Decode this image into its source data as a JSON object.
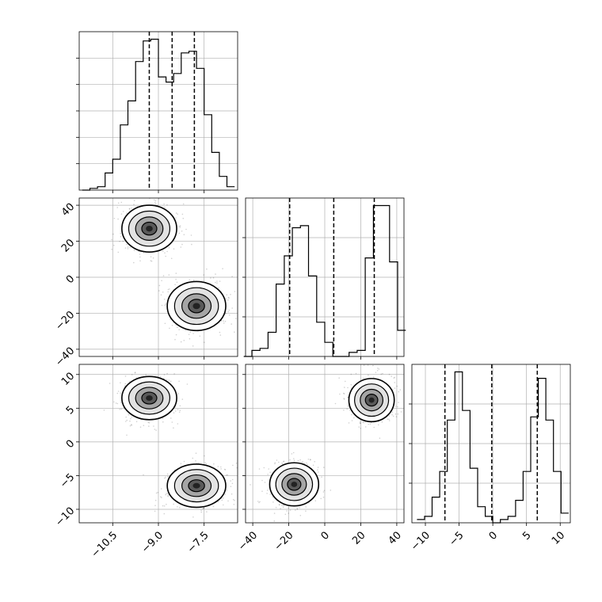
{
  "chart_data": {
    "type": "corner",
    "grid": true,
    "colors": {
      "line": "#000000",
      "grid": "#b0b0b0",
      "points": "#000000"
    },
    "panels": {
      "hist_p0": {
        "type": "histogram",
        "bin_edges": [
          -11.5,
          -11.25,
          -11.0,
          -10.75,
          -10.5,
          -10.25,
          -10.0,
          -9.75,
          -9.5,
          -9.25,
          -9.0,
          -8.75,
          -8.5,
          -8.25,
          -8.0,
          -7.75,
          -7.5,
          -7.25,
          -7.0,
          -6.75,
          -6.5
        ],
        "counts": [
          0,
          1,
          2,
          10,
          18,
          38,
          52,
          75,
          87,
          88,
          66,
          63,
          68,
          80,
          81,
          71,
          44,
          22,
          8,
          2
        ],
        "quantiles": [
          -9.3,
          -8.55,
          -7.82
        ],
        "ytick_count": 5
      },
      "hist_p1": {
        "type": "histogram",
        "bin_edges": [
          -45,
          -40.5,
          -36,
          -31.5,
          -27,
          -22.5,
          -18,
          -13.5,
          -9,
          -4.5,
          0,
          4.5,
          9,
          13.5,
          18,
          22.5,
          27,
          31.5,
          36,
          40.5,
          45
        ],
        "counts": [
          0,
          3,
          4,
          12,
          36,
          50,
          64,
          65,
          40,
          17,
          7,
          0,
          0,
          2,
          3,
          49,
          75,
          75,
          47,
          13
        ],
        "quantiles": [
          -19.5,
          5.0,
          27.5
        ],
        "ytick_count": 3
      },
      "hist_p2": {
        "type": "histogram",
        "bin_edges": [
          -11.25,
          -10.125,
          -9.0,
          -7.875,
          -6.75,
          -5.625,
          -4.5,
          -3.375,
          -2.25,
          -1.125,
          0,
          1.125,
          2.25,
          3.375,
          4.5,
          5.625,
          6.75,
          7.875,
          9.0,
          10.125,
          11.25
        ],
        "counts": [
          1,
          2,
          8,
          16,
          32,
          47,
          35,
          17,
          5,
          2,
          0,
          1,
          2,
          7,
          16,
          33,
          45,
          32,
          16,
          3
        ],
        "quantiles": [
          -7.1,
          -0.15,
          6.6
        ],
        "ytick_count": 3
      },
      "scatter_p1_vs_p0": {
        "type": "density_scatter",
        "x_param": 0,
        "y_param": 1,
        "clusters": [
          {
            "center": [
              -9.3,
              27
            ],
            "spread": [
              0.45,
              6.5
            ]
          },
          {
            "center": [
              -7.75,
              -16
            ],
            "spread": [
              0.48,
              6.8
            ]
          }
        ]
      },
      "scatter_p2_vs_p0": {
        "type": "density_scatter",
        "x_param": 0,
        "y_param": 2,
        "clusters": [
          {
            "center": [
              -9.3,
              6.5
            ],
            "spread": [
              0.45,
              1.6
            ]
          },
          {
            "center": [
              -7.75,
              -6.5
            ],
            "spread": [
              0.48,
              1.6
            ]
          }
        ]
      },
      "scatter_p2_vs_p1": {
        "type": "density_scatter",
        "x_param": 1,
        "y_param": 2,
        "clusters": [
          {
            "center": [
              26,
              6.2
            ],
            "spread": [
              6.3,
              1.6
            ]
          },
          {
            "center": [
              -17,
              -6.3
            ],
            "spread": [
              6.8,
              1.6
            ]
          }
        ]
      }
    },
    "axes": {
      "p0": {
        "range": [
          -11.6,
          -6.4
        ],
        "ticks": [
          -10.5,
          -9.0,
          -7.5
        ],
        "tick_labels": [
          "−10.5",
          "−9.0",
          "−7.5"
        ]
      },
      "p1": {
        "range": [
          -44,
          44
        ],
        "ticks": [
          -40,
          -20,
          0,
          20,
          40
        ],
        "tick_labels": [
          "−40",
          "−20",
          "0",
          "20",
          "40"
        ]
      },
      "p2": {
        "range": [
          -12,
          11.5
        ],
        "ticks": [
          -10,
          -5,
          0,
          5,
          10
        ],
        "tick_labels": [
          "−10",
          "−5",
          "0",
          "5",
          "10"
        ]
      }
    }
  }
}
